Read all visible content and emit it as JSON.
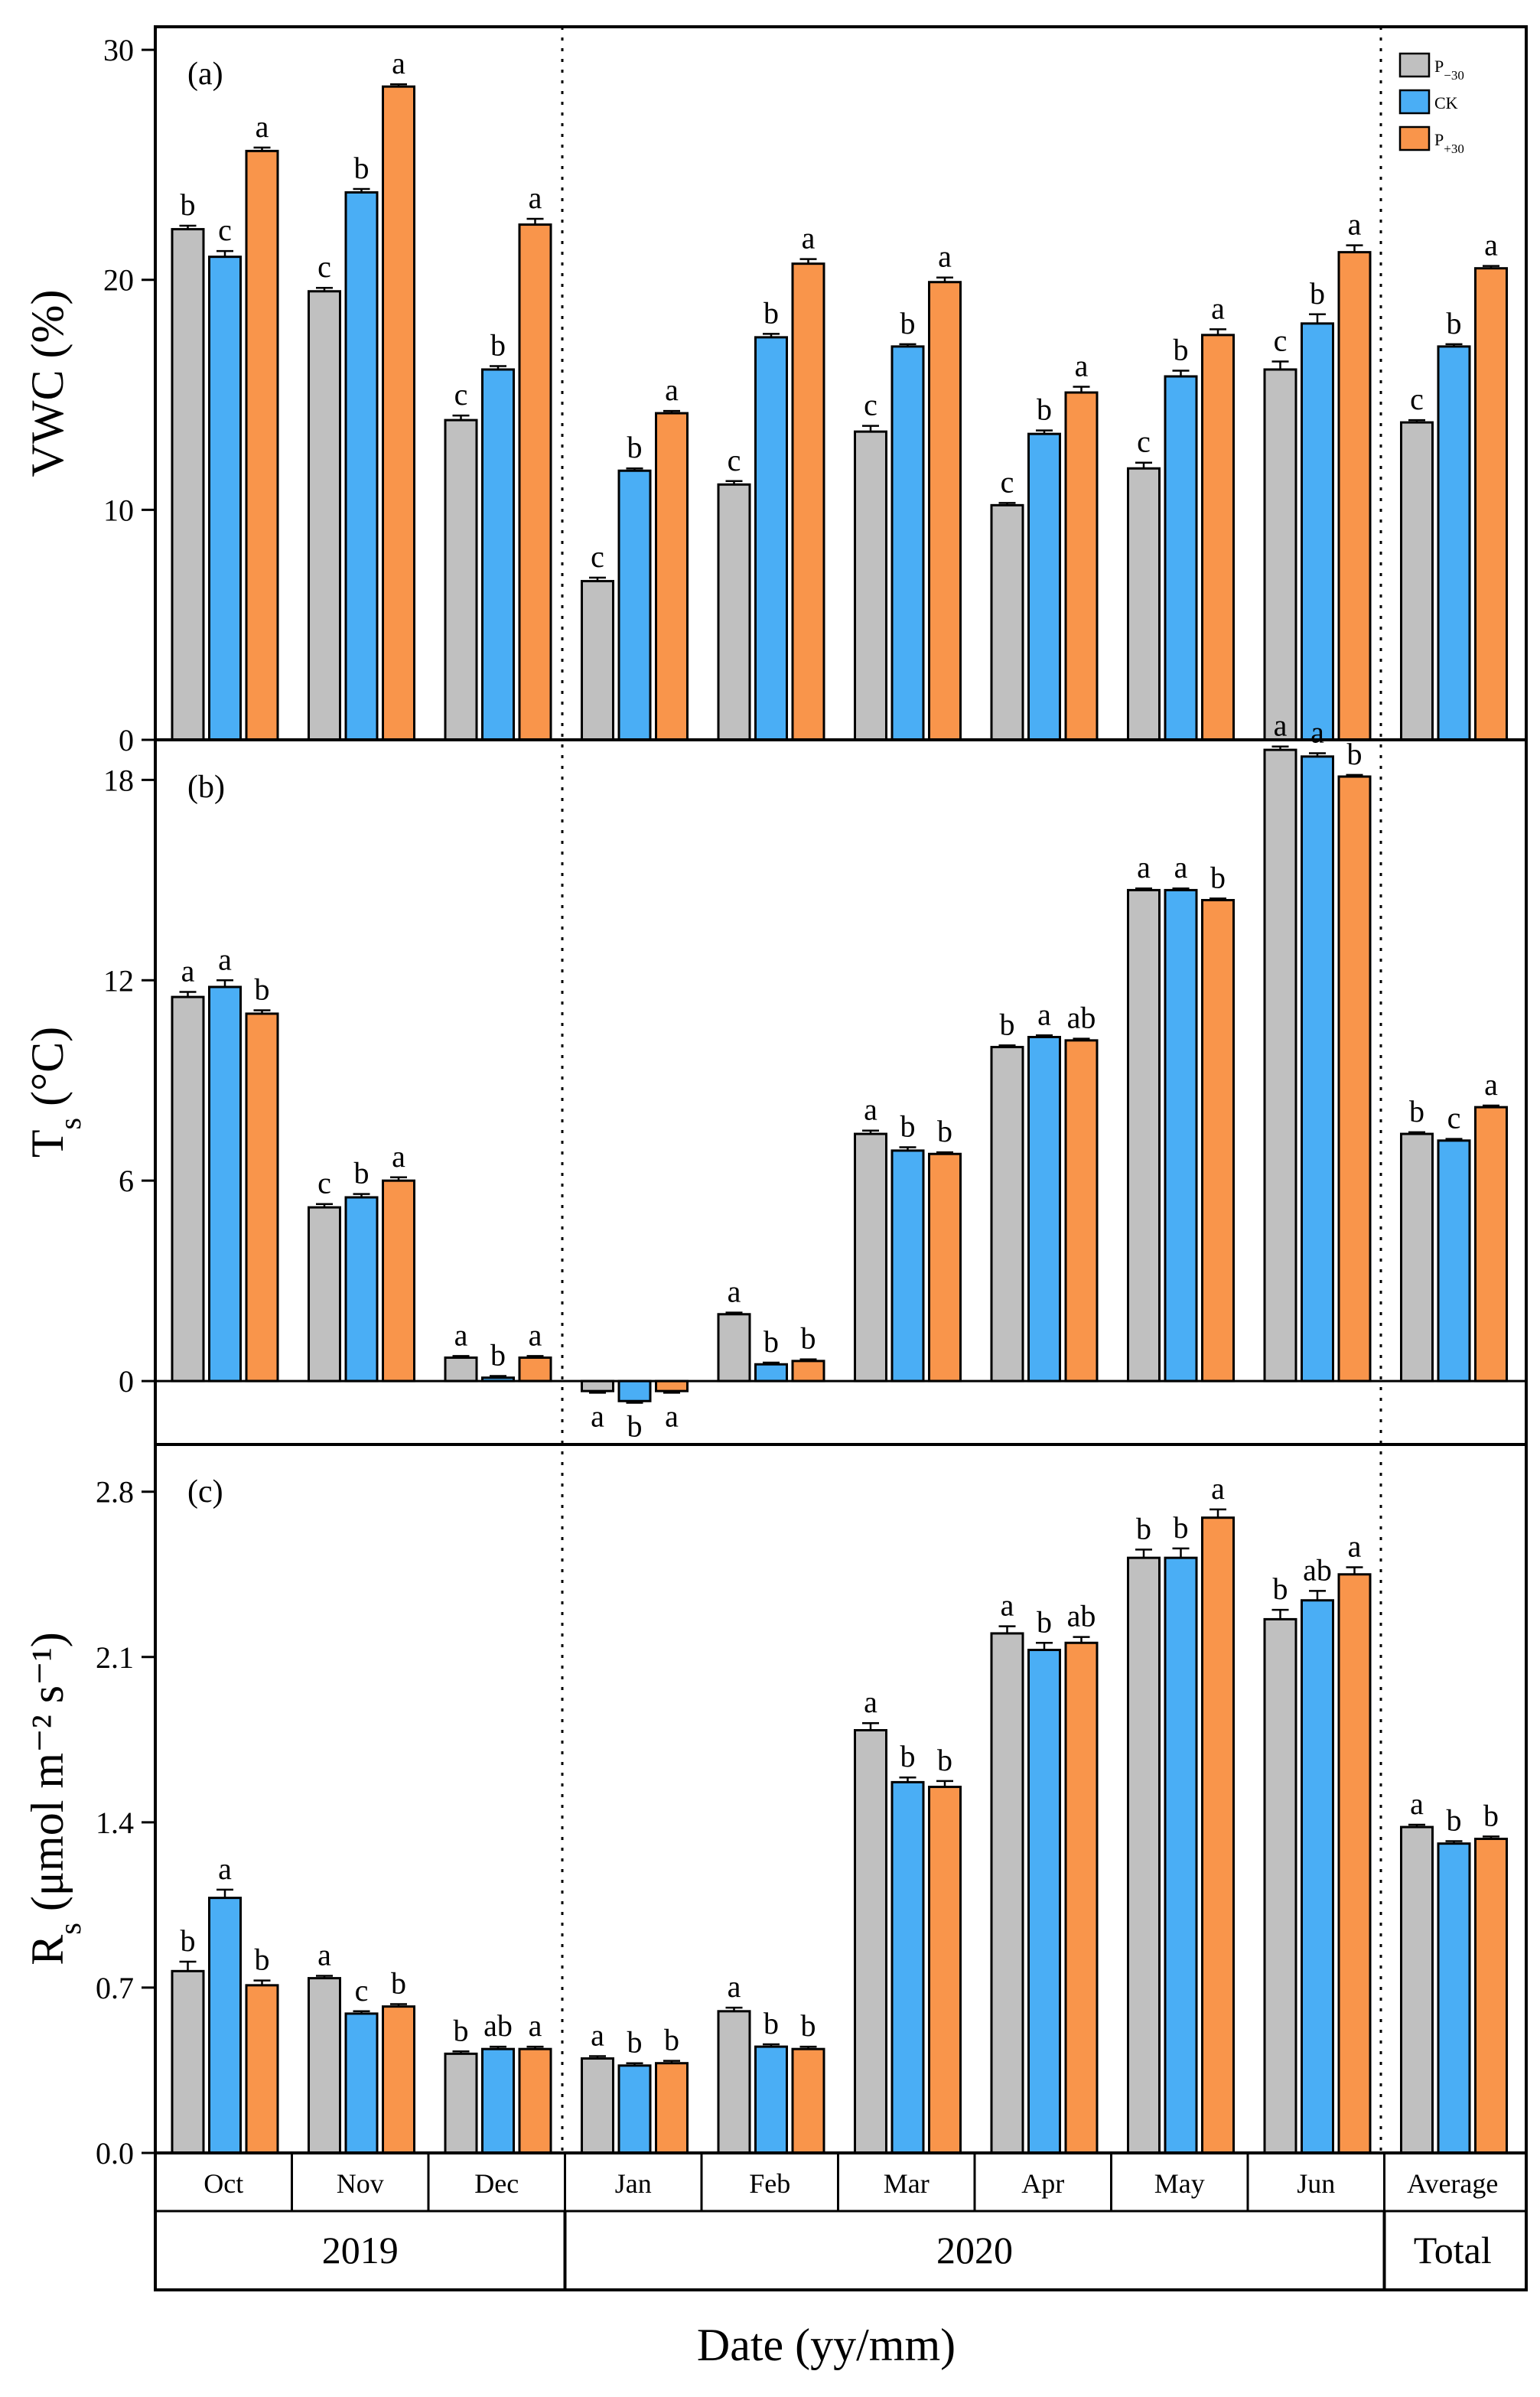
{
  "chart_data": {
    "type": "bar",
    "xlabel": "Date (yy/mm)",
    "categories": [
      "Oct",
      "Nov",
      "Dec",
      "Jan",
      "Feb",
      "Mar",
      "Apr",
      "May",
      "Jun",
      "Average"
    ],
    "years": [
      {
        "label": "2019",
        "span": [
          0,
          2
        ]
      },
      {
        "label": "2020",
        "span": [
          3,
          8
        ]
      },
      {
        "label": "Total",
        "span": [
          9,
          9
        ]
      }
    ],
    "legend": {
      "position": "top-right",
      "entries": [
        {
          "main": "P",
          "sub": "−30",
          "color": "#c0c0c0"
        },
        {
          "main": "CK",
          "sub": "",
          "color": "#4aaef5"
        },
        {
          "main": "P",
          "sub": "+30",
          "color": "#f9954b"
        }
      ]
    },
    "panels": [
      {
        "label": "(a)",
        "ylabel_main": "VWC (%)",
        "ylabel_sub": "",
        "ylabel_tail": "",
        "ylim": [
          0,
          31
        ],
        "ticks": [
          "0",
          "10",
          "20",
          "30"
        ],
        "series": [
          {
            "name": "P−30",
            "values": [
              22.2,
              19.5,
              13.9,
              6.9,
              11.1,
              13.4,
              10.2,
              11.8,
              16.1,
              13.8
            ],
            "errors": [
              0.15,
              0.15,
              0.2,
              0.15,
              0.15,
              0.25,
              0.1,
              0.25,
              0.35,
              0.1
            ]
          },
          {
            "name": "CK",
            "values": [
              21.0,
              23.8,
              16.1,
              11.7,
              17.5,
              17.1,
              13.3,
              15.8,
              18.1,
              17.1
            ],
            "errors": [
              0.25,
              0.15,
              0.15,
              0.1,
              0.15,
              0.1,
              0.15,
              0.25,
              0.4,
              0.1
            ]
          },
          {
            "name": "P+30",
            "values": [
              25.6,
              28.4,
              22.4,
              14.2,
              20.7,
              19.9,
              15.1,
              17.6,
              21.2,
              20.5
            ],
            "errors": [
              0.15,
              0.1,
              0.25,
              0.1,
              0.2,
              0.2,
              0.25,
              0.25,
              0.3,
              0.1
            ]
          }
        ],
        "letters": [
          [
            "b",
            "c",
            "a"
          ],
          [
            "c",
            "b",
            "a"
          ],
          [
            "c",
            "b",
            "a"
          ],
          [
            "c",
            "b",
            "a"
          ],
          [
            "c",
            "b",
            "a"
          ],
          [
            "c",
            "b",
            "a"
          ],
          [
            "c",
            "b",
            "a"
          ],
          [
            "c",
            "b",
            "a"
          ],
          [
            "c",
            "b",
            "a"
          ],
          [
            "c",
            "b",
            "a"
          ]
        ]
      },
      {
        "label": "(b)",
        "ylabel_main": "T",
        "ylabel_sub": "s",
        "ylabel_tail": " (°C)",
        "ylim": [
          -1.9,
          19.2
        ],
        "ticks": [
          "0",
          "6",
          "12",
          "18"
        ],
        "series": [
          {
            "name": "P−30",
            "values": [
              11.5,
              5.2,
              0.7,
              -0.3,
              2.0,
              7.4,
              10.0,
              14.7,
              18.9,
              7.4
            ],
            "errors": [
              0.15,
              0.1,
              0.05,
              0.05,
              0.05,
              0.1,
              0.05,
              0.05,
              0.1,
              0.05
            ]
          },
          {
            "name": "CK",
            "values": [
              11.8,
              5.5,
              0.1,
              -0.6,
              0.5,
              6.9,
              10.3,
              14.7,
              18.7,
              7.2
            ],
            "errors": [
              0.2,
              0.1,
              0.05,
              0.05,
              0.05,
              0.1,
              0.05,
              0.05,
              0.1,
              0.05
            ]
          },
          {
            "name": "P+30",
            "values": [
              11.0,
              6.0,
              0.7,
              -0.3,
              0.6,
              6.8,
              10.2,
              14.4,
              18.1,
              8.2
            ],
            "errors": [
              0.1,
              0.1,
              0.05,
              0.05,
              0.05,
              0.05,
              0.05,
              0.05,
              0.05,
              0.05
            ]
          }
        ],
        "letters": [
          [
            "a",
            "a",
            "b"
          ],
          [
            "c",
            "b",
            "a"
          ],
          [
            "a",
            "b",
            "a"
          ],
          [
            "a",
            "b",
            "a"
          ],
          [
            "a",
            "b",
            "b"
          ],
          [
            "a",
            "b",
            "b"
          ],
          [
            "b",
            "a",
            "ab"
          ],
          [
            "a",
            "a",
            "b"
          ],
          [
            "a",
            "a",
            "b"
          ],
          [
            "b",
            "c",
            "a"
          ]
        ]
      },
      {
        "label": "(c)",
        "ylabel_main": "R",
        "ylabel_sub": "s",
        "ylabel_tail": " (μmol m⁻² s⁻¹)",
        "ylim": [
          0,
          3.0
        ],
        "ticks": [
          "0.0",
          "0.7",
          "1.4",
          "2.1",
          "2.8"
        ],
        "series": [
          {
            "name": "P−30",
            "values": [
              0.77,
              0.74,
              0.42,
              0.4,
              0.6,
              1.79,
              2.2,
              2.52,
              2.26,
              1.38
            ],
            "errors": [
              0.04,
              0.01,
              0.01,
              0.01,
              0.015,
              0.03,
              0.03,
              0.035,
              0.04,
              0.01
            ]
          },
          {
            "name": "CK",
            "values": [
              1.08,
              0.59,
              0.44,
              0.37,
              0.45,
              1.57,
              2.13,
              2.52,
              2.34,
              1.31
            ],
            "errors": [
              0.035,
              0.01,
              0.01,
              0.01,
              0.01,
              0.02,
              0.03,
              0.04,
              0.04,
              0.01
            ]
          },
          {
            "name": "P+30",
            "values": [
              0.71,
              0.62,
              0.44,
              0.38,
              0.44,
              1.55,
              2.16,
              2.69,
              2.45,
              1.33
            ],
            "errors": [
              0.02,
              0.01,
              0.01,
              0.01,
              0.01,
              0.025,
              0.025,
              0.035,
              0.03,
              0.01
            ]
          }
        ],
        "letters": [
          [
            "b",
            "a",
            "b"
          ],
          [
            "a",
            "c",
            "b"
          ],
          [
            "b",
            "ab",
            "a"
          ],
          [
            "a",
            "b",
            "b"
          ],
          [
            "a",
            "b",
            "b"
          ],
          [
            "a",
            "b",
            "b"
          ],
          [
            "a",
            "b",
            "ab"
          ],
          [
            "b",
            "b",
            "a"
          ],
          [
            "b",
            "ab",
            "a"
          ],
          [
            "a",
            "b",
            "b"
          ]
        ]
      }
    ]
  }
}
